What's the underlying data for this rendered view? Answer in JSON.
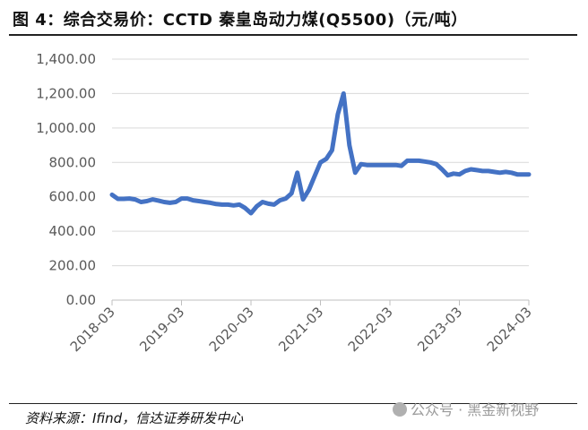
{
  "figure": {
    "title": "图 4：综合交易价：CCTD 秦皇岛动力煤(Q5500)（元/吨）",
    "source": "资料来源：Ifind，信达证券研发中心",
    "watermark": "公众号 · 黑金新视野",
    "watermark_icon": "wechat-icon"
  },
  "chart_data": {
    "type": "line",
    "title": "",
    "xlabel": "",
    "ylabel": "",
    "ylim": [
      0,
      1400
    ],
    "yticks": [
      "0.00",
      "200.00",
      "400.00",
      "600.00",
      "800.00",
      "1,000.00",
      "1,200.00",
      "1,400.00"
    ],
    "xticks": [
      "2018-03",
      "2019-03",
      "2020-03",
      "2021-03",
      "2022-03",
      "2023-03",
      "2024-03"
    ],
    "grid": true,
    "legend": "none",
    "color": "#4472C4",
    "series": [
      {
        "x": [
          "2018-03",
          "2018-04",
          "2018-05",
          "2018-06",
          "2018-07",
          "2018-08",
          "2018-09",
          "2018-10",
          "2018-11",
          "2018-12",
          "2019-01",
          "2019-02",
          "2019-03",
          "2019-04",
          "2019-05",
          "2019-06",
          "2019-07",
          "2019-08",
          "2019-09",
          "2019-10",
          "2019-11",
          "2019-12",
          "2020-01",
          "2020-02",
          "2020-03",
          "2020-04",
          "2020-05",
          "2020-06",
          "2020-07",
          "2020-08",
          "2020-09",
          "2020-10",
          "2020-11",
          "2020-12",
          "2021-01",
          "2021-02",
          "2021-03",
          "2021-04",
          "2021-05",
          "2021-06",
          "2021-07",
          "2021-08",
          "2021-09",
          "2021-10",
          "2021-11",
          "2021-12",
          "2022-01",
          "2022-02",
          "2022-03",
          "2022-04",
          "2022-05",
          "2022-06",
          "2022-07",
          "2022-08",
          "2022-09",
          "2022-10",
          "2022-11",
          "2022-12",
          "2023-01",
          "2023-02",
          "2023-03",
          "2023-04",
          "2023-05",
          "2023-06",
          "2023-07",
          "2023-08",
          "2023-09",
          "2023-10",
          "2023-11",
          "2023-12",
          "2024-01",
          "2024-02",
          "2024-03"
        ],
        "values": [
          612,
          588,
          588,
          590,
          585,
          570,
          575,
          585,
          578,
          570,
          565,
          570,
          590,
          590,
          580,
          575,
          570,
          565,
          558,
          555,
          555,
          550,
          555,
          535,
          505,
          545,
          570,
          560,
          555,
          580,
          590,
          620,
          740,
          585,
          640,
          720,
          800,
          820,
          870,
          1080,
          1200,
          900,
          740,
          790,
          785,
          785,
          785,
          785,
          785,
          785,
          780,
          810,
          810,
          810,
          805,
          800,
          790,
          760,
          725,
          735,
          730,
          750,
          760,
          755,
          750,
          750,
          745,
          740,
          745,
          740,
          730,
          730,
          730
        ]
      }
    ]
  }
}
